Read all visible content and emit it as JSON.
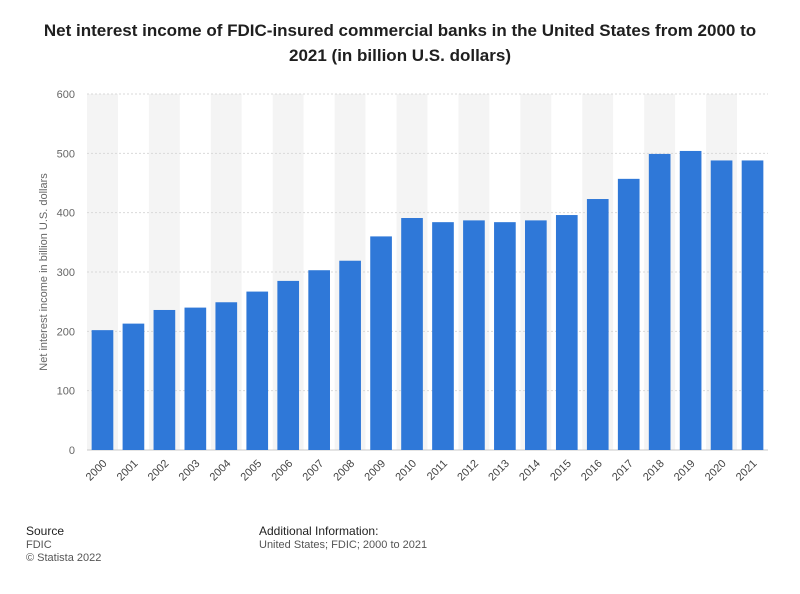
{
  "chart_data": {
    "type": "bar",
    "title": "Net interest income of FDIC-insured commercial banks in the United States from 2000 to 2021 (in billion U.S. dollars)",
    "ylabel": "Net interest income in billion U.S. dollars",
    "xlabel": "",
    "ylim": [
      0,
      600
    ],
    "yticks": [
      "0",
      "100",
      "200",
      "300",
      "400",
      "500",
      "600"
    ],
    "grid": true,
    "categories": [
      "2000",
      "2001",
      "2002",
      "2003",
      "2004",
      "2005",
      "2006",
      "2007",
      "2008",
      "2009",
      "2010",
      "2011",
      "2012",
      "2013",
      "2014",
      "2015",
      "2016",
      "2017",
      "2018",
      "2019",
      "2020",
      "2021"
    ],
    "values": [
      202,
      213,
      236,
      240,
      249,
      267,
      285,
      303,
      319,
      360,
      391,
      384,
      387,
      384,
      387,
      396,
      423,
      457,
      499,
      504,
      488,
      488
    ],
    "bar_color": "#2f78d8"
  },
  "footer": {
    "source_heading": "Source",
    "source_name": "FDIC",
    "copyright": "© Statista 2022",
    "additional_heading": "Additional Information:",
    "additional_text": "United States; FDIC; 2000 to 2021"
  }
}
